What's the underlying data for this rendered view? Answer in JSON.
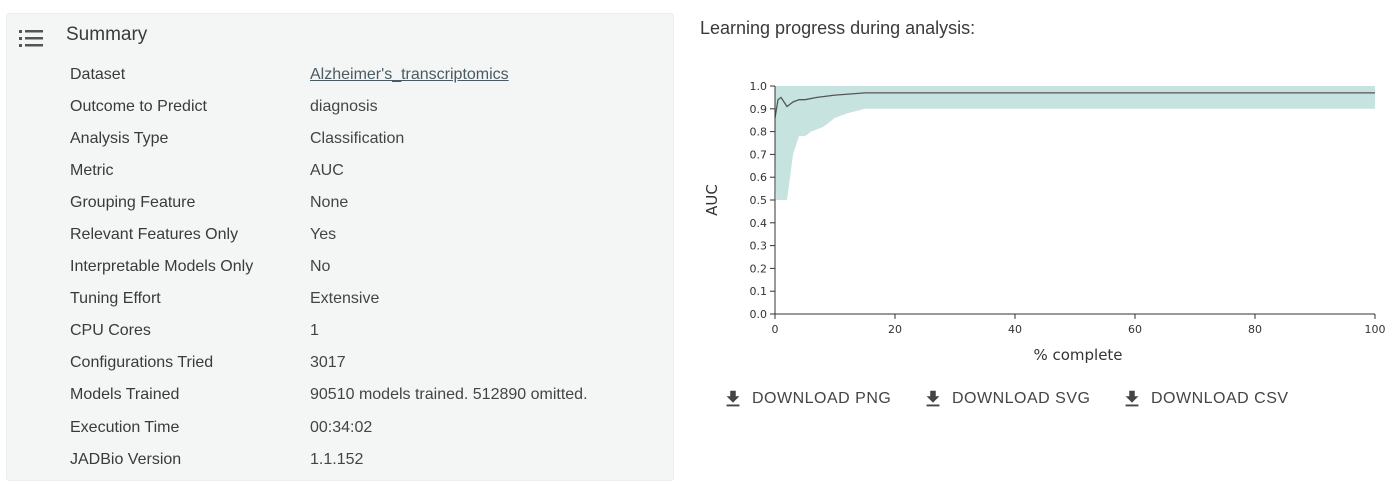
{
  "summary": {
    "title": "Summary",
    "icon": "list-icon",
    "rows": [
      {
        "label": "Dataset",
        "value": "Alzheimer's_transcriptomics",
        "link": true
      },
      {
        "label": "Outcome to Predict",
        "value": "diagnosis"
      },
      {
        "label": "Analysis Type",
        "value": "Classification"
      },
      {
        "label": "Metric",
        "value": "AUC"
      },
      {
        "label": "Grouping Feature",
        "value": "None"
      },
      {
        "label": "Relevant Features Only",
        "value": "Yes"
      },
      {
        "label": "Interpretable Models Only",
        "value": "No"
      },
      {
        "label": "Tuning Effort",
        "value": "Extensive"
      },
      {
        "label": "CPU Cores",
        "value": "1"
      },
      {
        "label": "Configurations Tried",
        "value": "3017"
      },
      {
        "label": "Models Trained",
        "value": "90510 models trained. 512890 omitted."
      },
      {
        "label": "Execution Time",
        "value": "00:34:02"
      },
      {
        "label": "JADBio Version",
        "value": "1.1.152"
      }
    ]
  },
  "chart_heading": "Learning progress during analysis:",
  "chart_data": {
    "type": "area",
    "xlabel": "% complete",
    "ylabel": "AUC",
    "xlim": [
      0,
      100
    ],
    "ylim": [
      0,
      1
    ],
    "xticks": [
      "0",
      "20",
      "40",
      "60",
      "80",
      "100"
    ],
    "yticks": [
      "0.0",
      "0.1",
      "0.2",
      "0.3",
      "0.4",
      "0.5",
      "0.6",
      "0.7",
      "0.8",
      "0.9",
      "1.0"
    ],
    "series": [
      {
        "role": "line",
        "color": "#555555",
        "x": [
          0,
          0.5,
          1,
          1.5,
          2,
          2.5,
          3,
          4,
          5,
          7,
          10,
          15,
          20,
          40,
          60,
          80,
          100
        ],
        "y": [
          0.86,
          0.94,
          0.95,
          0.93,
          0.91,
          0.92,
          0.93,
          0.94,
          0.94,
          0.95,
          0.96,
          0.97,
          0.97,
          0.97,
          0.97,
          0.97,
          0.97
        ]
      },
      {
        "role": "band",
        "color": "#c7e3df",
        "x": [
          0,
          0.2,
          2,
          2.5,
          3,
          4,
          5,
          6,
          7,
          8,
          9,
          10,
          12,
          15,
          20,
          40,
          60,
          80,
          100
        ],
        "lower": [
          0.82,
          0.5,
          0.5,
          0.6,
          0.7,
          0.78,
          0.78,
          0.8,
          0.81,
          0.82,
          0.84,
          0.86,
          0.88,
          0.9,
          0.9,
          0.9,
          0.9,
          0.9,
          0.9
        ],
        "upper": [
          1,
          1,
          1,
          1,
          1,
          1,
          1,
          1,
          1,
          1,
          1,
          1,
          1,
          1,
          1,
          1,
          1,
          1,
          1
        ]
      }
    ]
  },
  "downloads": [
    {
      "label": "DOWNLOAD PNG",
      "icon": "download-icon"
    },
    {
      "label": "DOWNLOAD SVG",
      "icon": "download-icon"
    },
    {
      "label": "DOWNLOAD CSV",
      "icon": "download-icon"
    }
  ],
  "colors": {
    "band": "#c7e3df",
    "line": "#555555",
    "card_bg": "#f4f6f5",
    "link": "#4a5a63"
  }
}
